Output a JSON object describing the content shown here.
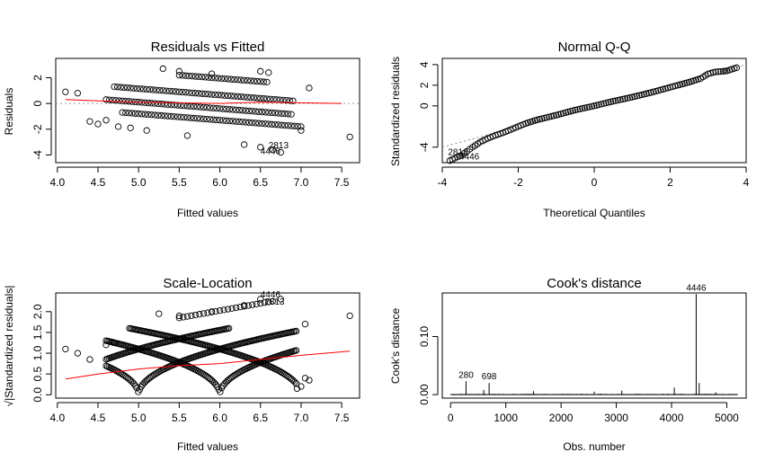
{
  "chart_data": [
    {
      "type": "scatter",
      "title": "Residuals vs Fitted",
      "xlabel": "Fitted values",
      "ylabel": "Residuals",
      "xlim": [
        3.98,
        7.72
      ],
      "ylim": [
        -4.6,
        3.5
      ],
      "x_ticks": [
        4.0,
        4.5,
        5.0,
        5.5,
        6.0,
        6.5,
        7.0,
        7.5
      ],
      "x_tick_labels": [
        "4.0",
        "4.5",
        "5.0",
        "5.5",
        "6.0",
        "6.5",
        "7.0",
        "7.5"
      ],
      "y_ticks": [
        -4,
        -2,
        0,
        2
      ],
      "y_tick_labels": [
        "-4",
        "-2",
        "0",
        "2"
      ],
      "reference_line": 0,
      "smooth_color": "#ff0000",
      "bands": [
        {
          "x0": 4.7,
          "x1": 6.9,
          "a": 1.3
        },
        {
          "x0": 4.6,
          "x1": 6.9,
          "a": 0.3
        },
        {
          "x0": 4.8,
          "x1": 7.0,
          "a": -0.7
        },
        {
          "x0": 5.5,
          "x1": 6.6,
          "a": 2.2
        }
      ],
      "smooth": [
        [
          4.1,
          0.3
        ],
        [
          4.5,
          0.2
        ],
        [
          5.0,
          0.1
        ],
        [
          5.5,
          0.05
        ],
        [
          6.0,
          0.0
        ],
        [
          6.5,
          0.1
        ],
        [
          7.0,
          0.05
        ],
        [
          7.5,
          0.0
        ]
      ],
      "outliers": [
        [
          4.1,
          0.9
        ],
        [
          4.25,
          0.8
        ],
        [
          4.4,
          -1.4
        ],
        [
          4.5,
          -1.6
        ],
        [
          4.6,
          -1.3
        ],
        [
          4.75,
          -1.8
        ],
        [
          5.3,
          2.7
        ],
        [
          5.5,
          2.5
        ],
        [
          5.6,
          -2.5
        ],
        [
          5.9,
          2.3
        ],
        [
          6.5,
          2.5
        ],
        [
          6.6,
          2.4
        ],
        [
          6.3,
          -3.2
        ],
        [
          6.5,
          -3.4
        ],
        [
          6.65,
          -3.6
        ],
        [
          6.75,
          -3.8
        ],
        [
          7.0,
          -2.1
        ],
        [
          7.1,
          1.2
        ],
        [
          7.6,
          -2.6
        ],
        [
          5.1,
          -2.1
        ],
        [
          4.9,
          -1.9
        ]
      ],
      "annotations": [
        {
          "text": "2813",
          "x": 6.6,
          "y": -3.5
        },
        {
          "text": "4446",
          "x": 6.5,
          "y": -3.95
        }
      ]
    },
    {
      "type": "scatter",
      "title": "Normal Q-Q",
      "xlabel": "Theoretical Quantiles",
      "ylabel": "Standardized residuals",
      "xlim": [
        -4.0,
        4.0
      ],
      "ylim": [
        -5.5,
        4.6
      ],
      "x_ticks": [
        -4,
        -2,
        0,
        2,
        4
      ],
      "x_tick_labels": [
        "-4",
        "-2",
        "0",
        "2",
        "4"
      ],
      "y_ticks": [
        -4,
        0,
        2,
        4
      ],
      "y_tick_labels": [
        "-4",
        "0",
        "2",
        "4"
      ],
      "reference_line": {
        "slope": 1.0,
        "intercept": 0
      },
      "points": [
        [
          -3.8,
          -5.3
        ],
        [
          -3.6,
          -4.95
        ],
        [
          -3.5,
          -4.8
        ],
        [
          -3.35,
          -4.4
        ],
        [
          -3.2,
          -4.0
        ],
        [
          -3.0,
          -3.5
        ],
        [
          -2.8,
          -3.15
        ],
        [
          -2.6,
          -2.85
        ],
        [
          -2.4,
          -2.6
        ],
        [
          -2.2,
          -2.3
        ],
        [
          -2.0,
          -2.0
        ],
        [
          -1.8,
          -1.7
        ],
        [
          -1.5,
          -1.35
        ],
        [
          -1.0,
          -0.9
        ],
        [
          -0.5,
          -0.4
        ],
        [
          0.0,
          0.0
        ],
        [
          0.5,
          0.45
        ],
        [
          1.0,
          0.85
        ],
        [
          1.5,
          1.3
        ],
        [
          2.0,
          1.8
        ],
        [
          2.2,
          2.0
        ],
        [
          2.5,
          2.3
        ],
        [
          2.8,
          2.65
        ],
        [
          3.0,
          3.1
        ],
        [
          3.2,
          3.3
        ],
        [
          3.4,
          3.35
        ],
        [
          3.5,
          3.4
        ],
        [
          3.75,
          3.7
        ]
      ],
      "annotations": [
        {
          "text": "2813",
          "x": -3.85,
          "y": -4.75
        },
        {
          "text": "4446",
          "x": -3.55,
          "y": -5.2
        }
      ]
    },
    {
      "type": "scatter",
      "title": "Scale-Location",
      "xlabel": "Fitted values",
      "ylabel": "√|Standardized residuals|",
      "xlim": [
        3.98,
        7.72
      ],
      "ylim": [
        -0.08,
        2.45
      ],
      "x_ticks": [
        4.0,
        4.5,
        5.0,
        5.5,
        6.0,
        6.5,
        7.0,
        7.5
      ],
      "x_tick_labels": [
        "4.0",
        "4.5",
        "5.0",
        "5.5",
        "6.0",
        "6.5",
        "7.0",
        "7.5"
      ],
      "y_ticks": [
        0.0,
        0.5,
        1.0,
        1.5,
        2.0
      ],
      "y_tick_labels": [
        "0.0",
        "0.5",
        "1.0",
        "1.5",
        "2.0"
      ],
      "smooth_color": "#ff0000",
      "arc_centers": [
        4.0,
        5.0,
        6.0,
        7.0
      ],
      "arc_range": [
        4.6,
        6.95
      ],
      "upper_arc": {
        "x0": 5.5,
        "x1": 6.65,
        "base": 1.85
      },
      "smooth": [
        [
          4.1,
          0.38
        ],
        [
          4.5,
          0.5
        ],
        [
          5.0,
          0.62
        ],
        [
          5.5,
          0.7
        ],
        [
          6.0,
          0.75
        ],
        [
          6.5,
          0.85
        ],
        [
          7.0,
          0.95
        ],
        [
          7.6,
          1.05
        ]
      ],
      "outliers": [
        [
          4.1,
          1.1
        ],
        [
          4.25,
          1.0
        ],
        [
          4.4,
          0.85
        ],
        [
          4.6,
          1.2
        ],
        [
          4.7,
          1.25
        ],
        [
          5.25,
          1.95
        ],
        [
          5.5,
          1.9
        ],
        [
          5.9,
          2.0
        ],
        [
          6.3,
          2.15
        ],
        [
          6.5,
          2.3
        ],
        [
          6.75,
          2.3
        ],
        [
          7.05,
          1.7
        ],
        [
          7.05,
          0.4
        ],
        [
          7.1,
          0.35
        ],
        [
          7.6,
          1.9
        ],
        [
          7.0,
          0.2
        ],
        [
          6.95,
          0.15
        ]
      ],
      "annotations": [
        {
          "text": "4446",
          "x": 6.5,
          "y": 2.34
        },
        {
          "text": "2813",
          "x": 6.55,
          "y": 2.17
        }
      ]
    },
    {
      "type": "bar",
      "title": "Cook's distance",
      "xlabel": "Obs. number",
      "ylabel": "Cook's distance",
      "xlim": [
        -150,
        5350
      ],
      "ylim": [
        -0.006,
        0.175
      ],
      "x_ticks": [
        0,
        1000,
        2000,
        3000,
        4000,
        5000
      ],
      "x_tick_labels": [
        "0",
        "1000",
        "2000",
        "3000",
        "4000",
        "5000"
      ],
      "y_ticks": [
        0.0,
        0.1
      ],
      "y_tick_labels": [
        "0.00",
        "0.10"
      ],
      "n_obs": 5200,
      "spikes": [
        [
          280,
          0.023
        ],
        [
          698,
          0.02
        ],
        [
          4446,
          0.173
        ],
        [
          4500,
          0.02
        ],
        [
          4050,
          0.012
        ],
        [
          600,
          0.008
        ],
        [
          1500,
          0.006
        ],
        [
          2600,
          0.005
        ],
        [
          3100,
          0.007
        ],
        [
          4800,
          0.004
        ]
      ],
      "annotations": [
        {
          "text": "280",
          "x": 280,
          "y": 0.023
        },
        {
          "text": "698",
          "x": 698,
          "y": 0.02
        },
        {
          "text": "4446",
          "x": 4446,
          "y": 0.173
        }
      ]
    }
  ]
}
